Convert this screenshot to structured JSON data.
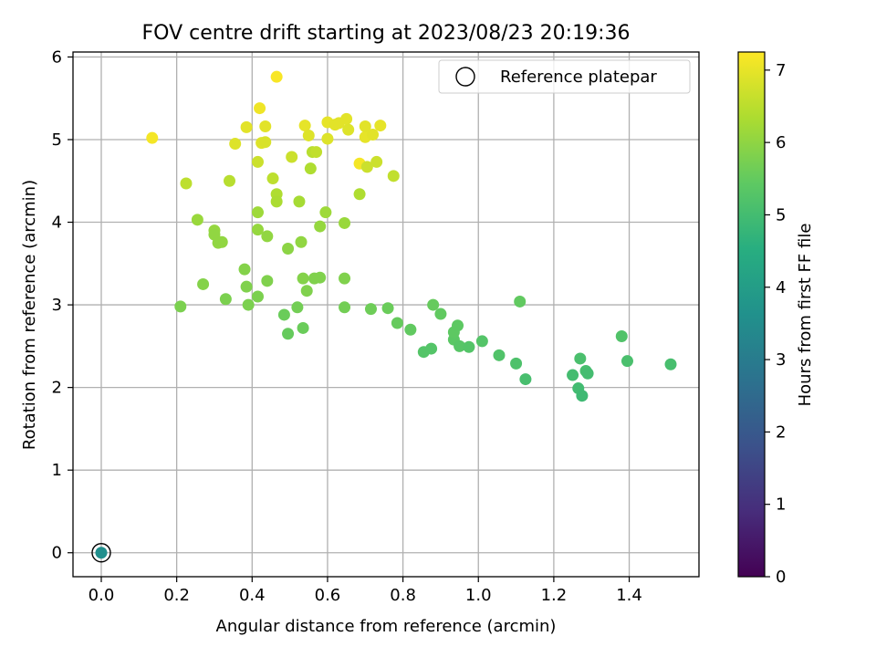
{
  "chart_data": {
    "type": "scatter",
    "title": "FOV centre drift starting at 2023/08/23 20:19:36",
    "xlabel": "Angular distance from reference (arcmin)",
    "ylabel": "Rotation from reference (arcmin)",
    "xlim": [
      -0.075,
      1.585
    ],
    "ylim": [
      -0.29,
      6.06
    ],
    "xticks": [
      "0.0",
      "0.2",
      "0.4",
      "0.6",
      "0.8",
      "1.0",
      "1.2",
      "1.4"
    ],
    "xtick_values": [
      0.0,
      0.2,
      0.4,
      0.6,
      0.8,
      1.0,
      1.2,
      1.4
    ],
    "yticks": [
      "0",
      "1",
      "2",
      "3",
      "4",
      "5",
      "6"
    ],
    "ytick_values": [
      0,
      1,
      2,
      3,
      4,
      5,
      6
    ],
    "grid": true,
    "colorbar": {
      "label": "Hours from first FF file",
      "range": [
        0,
        7.25
      ],
      "ticks": [
        "0",
        "1",
        "2",
        "3",
        "4",
        "5",
        "6",
        "7"
      ],
      "tick_values": [
        0,
        1,
        2,
        3,
        4,
        5,
        6,
        7
      ],
      "colormap": "viridis"
    },
    "legend": {
      "position": "top-right",
      "entries": [
        {
          "label": "Reference platepar",
          "marker": "open-circle"
        }
      ]
    },
    "reference_point": {
      "x": 0.0,
      "y": 0.0,
      "c": 3.6
    },
    "points": [
      {
        "x": 0.135,
        "y": 5.02,
        "c": 7.15
      },
      {
        "x": 0.225,
        "y": 4.47,
        "c": 6.55
      },
      {
        "x": 0.255,
        "y": 4.03,
        "c": 6.15
      },
      {
        "x": 0.3,
        "y": 3.9,
        "c": 6.1
      },
      {
        "x": 0.31,
        "y": 3.75,
        "c": 6.05
      },
      {
        "x": 0.3,
        "y": 3.85,
        "c": 6.05
      },
      {
        "x": 0.32,
        "y": 3.76,
        "c": 6.05
      },
      {
        "x": 0.27,
        "y": 3.25,
        "c": 5.9
      },
      {
        "x": 0.21,
        "y": 2.98,
        "c": 5.8
      },
      {
        "x": 0.33,
        "y": 3.07,
        "c": 5.8
      },
      {
        "x": 0.34,
        "y": 4.5,
        "c": 6.5
      },
      {
        "x": 0.355,
        "y": 4.95,
        "c": 6.9
      },
      {
        "x": 0.38,
        "y": 3.43,
        "c": 5.9
      },
      {
        "x": 0.385,
        "y": 3.22,
        "c": 5.85
      },
      {
        "x": 0.39,
        "y": 3.0,
        "c": 5.8
      },
      {
        "x": 0.385,
        "y": 5.15,
        "c": 6.95
      },
      {
        "x": 0.415,
        "y": 4.73,
        "c": 6.7
      },
      {
        "x": 0.42,
        "y": 5.38,
        "c": 7.1
      },
      {
        "x": 0.425,
        "y": 4.96,
        "c": 6.9
      },
      {
        "x": 0.435,
        "y": 5.16,
        "c": 6.95
      },
      {
        "x": 0.435,
        "y": 4.97,
        "c": 6.85
      },
      {
        "x": 0.415,
        "y": 4.12,
        "c": 6.2
      },
      {
        "x": 0.415,
        "y": 3.91,
        "c": 6.1
      },
      {
        "x": 0.44,
        "y": 3.83,
        "c": 6.05
      },
      {
        "x": 0.44,
        "y": 3.29,
        "c": 5.85
      },
      {
        "x": 0.415,
        "y": 3.1,
        "c": 5.8
      },
      {
        "x": 0.455,
        "y": 4.53,
        "c": 6.55
      },
      {
        "x": 0.465,
        "y": 4.34,
        "c": 6.4
      },
      {
        "x": 0.465,
        "y": 4.25,
        "c": 6.35
      },
      {
        "x": 0.465,
        "y": 5.76,
        "c": 7.2
      },
      {
        "x": 0.485,
        "y": 2.88,
        "c": 5.6
      },
      {
        "x": 0.495,
        "y": 2.65,
        "c": 5.55
      },
      {
        "x": 0.495,
        "y": 3.68,
        "c": 6.0
      },
      {
        "x": 0.505,
        "y": 4.79,
        "c": 6.7
      },
      {
        "x": 0.52,
        "y": 2.97,
        "c": 5.7
      },
      {
        "x": 0.525,
        "y": 4.25,
        "c": 6.3
      },
      {
        "x": 0.53,
        "y": 3.76,
        "c": 6.05
      },
      {
        "x": 0.535,
        "y": 3.32,
        "c": 5.9
      },
      {
        "x": 0.535,
        "y": 2.72,
        "c": 5.6
      },
      {
        "x": 0.54,
        "y": 5.17,
        "c": 7.0
      },
      {
        "x": 0.545,
        "y": 3.17,
        "c": 5.85
      },
      {
        "x": 0.55,
        "y": 5.05,
        "c": 6.9
      },
      {
        "x": 0.555,
        "y": 4.65,
        "c": 6.4
      },
      {
        "x": 0.56,
        "y": 4.85,
        "c": 6.5
      },
      {
        "x": 0.565,
        "y": 3.32,
        "c": 5.85
      },
      {
        "x": 0.57,
        "y": 4.85,
        "c": 6.6
      },
      {
        "x": 0.58,
        "y": 3.95,
        "c": 6.1
      },
      {
        "x": 0.58,
        "y": 3.33,
        "c": 5.85
      },
      {
        "x": 0.595,
        "y": 4.12,
        "c": 6.2
      },
      {
        "x": 0.6,
        "y": 5.01,
        "c": 6.9
      },
      {
        "x": 0.6,
        "y": 5.21,
        "c": 7.0
      },
      {
        "x": 0.62,
        "y": 5.18,
        "c": 6.95
      },
      {
        "x": 0.63,
        "y": 5.2,
        "c": 6.95
      },
      {
        "x": 0.645,
        "y": 3.99,
        "c": 6.15
      },
      {
        "x": 0.645,
        "y": 3.32,
        "c": 5.85
      },
      {
        "x": 0.645,
        "y": 2.97,
        "c": 5.7
      },
      {
        "x": 0.65,
        "y": 5.25,
        "c": 6.95
      },
      {
        "x": 0.655,
        "y": 5.12,
        "c": 6.9
      },
      {
        "x": 0.685,
        "y": 4.34,
        "c": 6.4
      },
      {
        "x": 0.685,
        "y": 4.71,
        "c": 7.15
      },
      {
        "x": 0.7,
        "y": 5.03,
        "c": 7.0
      },
      {
        "x": 0.7,
        "y": 5.16,
        "c": 6.95
      },
      {
        "x": 0.705,
        "y": 4.67,
        "c": 6.7
      },
      {
        "x": 0.715,
        "y": 2.95,
        "c": 5.65
      },
      {
        "x": 0.72,
        "y": 5.06,
        "c": 6.95
      },
      {
        "x": 0.73,
        "y": 4.73,
        "c": 6.7
      },
      {
        "x": 0.74,
        "y": 5.17,
        "c": 7.0
      },
      {
        "x": 0.76,
        "y": 2.96,
        "c": 5.6
      },
      {
        "x": 0.775,
        "y": 4.56,
        "c": 6.6
      },
      {
        "x": 0.785,
        "y": 2.78,
        "c": 5.55
      },
      {
        "x": 0.82,
        "y": 2.7,
        "c": 5.5
      },
      {
        "x": 0.855,
        "y": 2.43,
        "c": 5.3
      },
      {
        "x": 0.875,
        "y": 2.47,
        "c": 5.3
      },
      {
        "x": 0.88,
        "y": 3.0,
        "c": 5.55
      },
      {
        "x": 0.9,
        "y": 2.89,
        "c": 5.5
      },
      {
        "x": 0.935,
        "y": 2.58,
        "c": 5.4
      },
      {
        "x": 0.935,
        "y": 2.67,
        "c": 5.45
      },
      {
        "x": 0.945,
        "y": 2.75,
        "c": 5.45
      },
      {
        "x": 0.95,
        "y": 2.5,
        "c": 5.35
      },
      {
        "x": 0.975,
        "y": 2.49,
        "c": 5.3
      },
      {
        "x": 1.01,
        "y": 2.56,
        "c": 5.3
      },
      {
        "x": 1.055,
        "y": 2.39,
        "c": 5.25
      },
      {
        "x": 1.1,
        "y": 2.29,
        "c": 5.2
      },
      {
        "x": 1.11,
        "y": 3.04,
        "c": 5.5
      },
      {
        "x": 1.125,
        "y": 2.1,
        "c": 5.1
      },
      {
        "x": 1.25,
        "y": 2.15,
        "c": 5.05
      },
      {
        "x": 1.265,
        "y": 1.99,
        "c": 5.0
      },
      {
        "x": 1.27,
        "y": 2.35,
        "c": 5.15
      },
      {
        "x": 1.275,
        "y": 1.9,
        "c": 4.95
      },
      {
        "x": 1.285,
        "y": 2.2,
        "c": 5.1
      },
      {
        "x": 1.29,
        "y": 2.17,
        "c": 5.05
      },
      {
        "x": 1.38,
        "y": 2.62,
        "c": 5.25
      },
      {
        "x": 1.395,
        "y": 2.32,
        "c": 5.15
      },
      {
        "x": 1.51,
        "y": 2.28,
        "c": 5.1
      }
    ]
  }
}
